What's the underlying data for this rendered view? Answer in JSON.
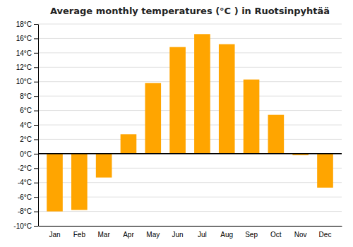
{
  "chart_data": {
    "type": "bar",
    "title": "Average monthly temperatures (°C ) in Ruotsinpyhtää",
    "categories": [
      "Jan",
      "Feb",
      "Mar",
      "Apr",
      "May",
      "Jun",
      "Jul",
      "Aug",
      "Sep",
      "Oct",
      "Nov",
      "Dec"
    ],
    "values": [
      -8.0,
      -7.8,
      -3.3,
      2.7,
      9.8,
      14.8,
      16.6,
      15.2,
      10.3,
      5.4,
      -0.2,
      -4.7
    ],
    "color": "#FFA500",
    "ylim": [
      -10,
      18
    ],
    "yticks": [
      {
        "value": -10,
        "label": "-10°C"
      },
      {
        "value": -8,
        "label": "-8°C"
      },
      {
        "value": -6,
        "label": "-6°C"
      },
      {
        "value": -4,
        "label": "-4°C"
      },
      {
        "value": -2,
        "label": "-2°C"
      },
      {
        "value": 0,
        "label": "0°C"
      },
      {
        "value": 2,
        "label": "2°C"
      },
      {
        "value": 4,
        "label": "4°C"
      },
      {
        "value": 6,
        "label": "6°C"
      },
      {
        "value": 8,
        "label": "8°C"
      },
      {
        "value": 10,
        "label": "10°C"
      },
      {
        "value": 12,
        "label": "12°C"
      },
      {
        "value": 14,
        "label": "14°C"
      },
      {
        "value": 16,
        "label": "16°C"
      },
      {
        "value": 18,
        "label": "18°C"
      }
    ],
    "grid": true
  }
}
